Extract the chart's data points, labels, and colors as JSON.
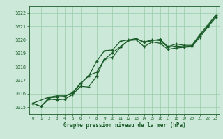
{
  "xlabel": "Graphe pression niveau de la mer (hPa)",
  "xlim": [
    -0.5,
    23.5
  ],
  "ylim": [
    1014.5,
    1022.5
  ],
  "yticks": [
    1015,
    1016,
    1017,
    1018,
    1019,
    1020,
    1021,
    1022
  ],
  "xticks": [
    0,
    1,
    2,
    3,
    4,
    5,
    6,
    7,
    8,
    9,
    10,
    11,
    12,
    13,
    14,
    15,
    16,
    17,
    18,
    19,
    20,
    21,
    22,
    23
  ],
  "bg_color": "#cce8d8",
  "grid_color": "#99ccaa",
  "line_color": "#1a5c28",
  "line1_x": [
    0,
    1,
    2,
    3,
    4,
    5,
    6,
    7,
    8,
    9,
    10,
    11,
    12,
    13,
    14,
    15,
    16,
    17,
    18,
    19,
    20,
    21,
    22,
    23
  ],
  "line1_y": [
    1015.3,
    1015.05,
    1015.7,
    1015.75,
    1015.8,
    1016.1,
    1016.8,
    1017.3,
    1018.4,
    1019.2,
    1019.25,
    1019.9,
    1020.0,
    1020.1,
    1019.85,
    1020.0,
    1019.95,
    1019.45,
    1019.55,
    1019.5,
    1019.55,
    1020.3,
    1021.0,
    1021.75
  ],
  "line2_x": [
    0,
    1,
    2,
    3,
    4,
    5,
    6,
    7,
    8,
    9,
    10,
    11,
    12,
    13,
    14,
    15,
    16,
    17,
    18,
    19,
    20,
    21,
    22,
    23
  ],
  "line2_y": [
    1015.3,
    1015.05,
    1015.6,
    1015.55,
    1015.6,
    1015.95,
    1016.55,
    1016.5,
    1017.3,
    1018.6,
    1018.7,
    1019.45,
    1019.95,
    1020.0,
    1019.5,
    1019.85,
    1019.75,
    1019.3,
    1019.4,
    1019.45,
    1019.5,
    1020.2,
    1020.95,
    1021.65
  ],
  "line3_x": [
    0,
    2,
    3,
    4,
    5,
    6,
    7,
    8,
    9,
    10,
    11,
    12,
    13,
    14,
    15,
    16,
    17,
    18,
    19,
    20,
    21,
    22,
    23
  ],
  "line3_y": [
    1015.3,
    1015.75,
    1015.85,
    1015.85,
    1016.05,
    1016.75,
    1017.35,
    1017.6,
    1018.55,
    1019.05,
    1019.5,
    1019.95,
    1020.1,
    1019.8,
    1019.95,
    1020.05,
    1019.5,
    1019.7,
    1019.6,
    1019.6,
    1020.4,
    1021.1,
    1021.85
  ]
}
